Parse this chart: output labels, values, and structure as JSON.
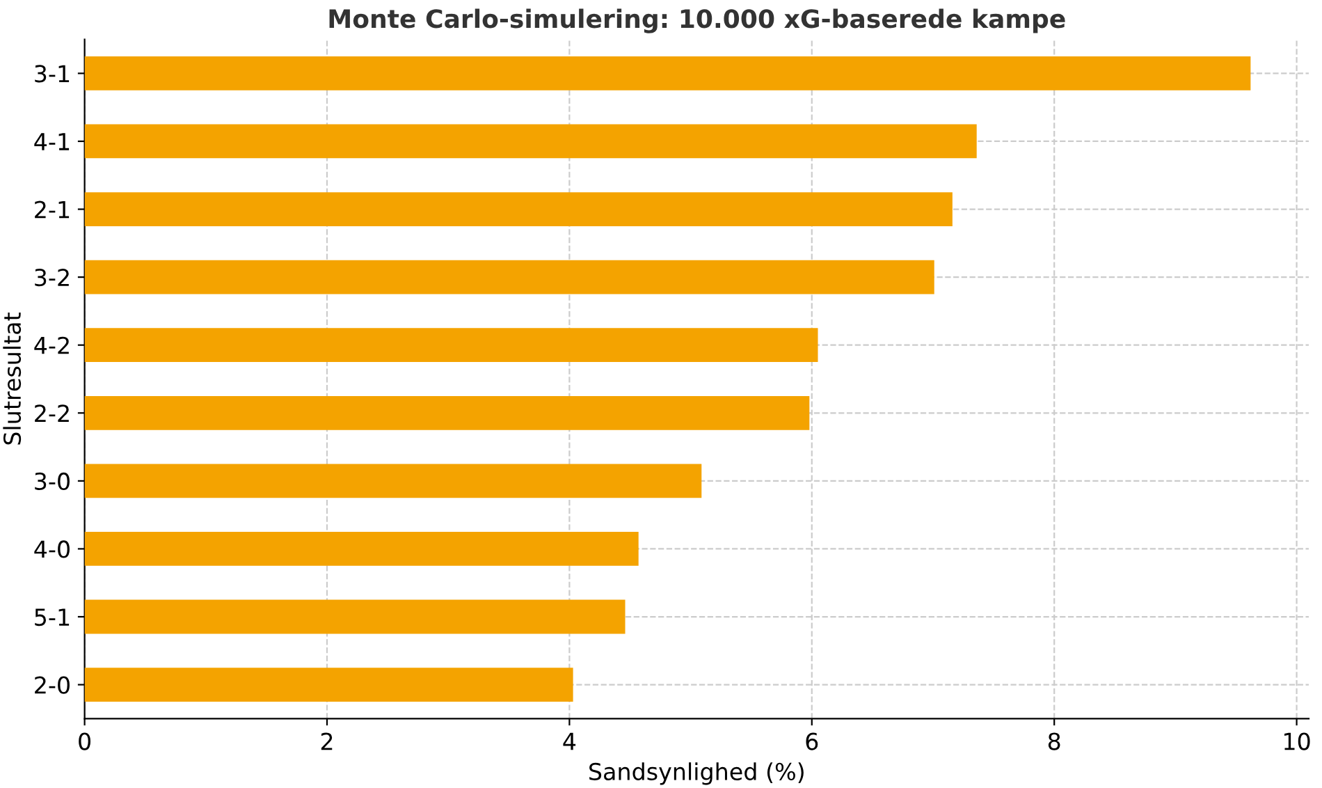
{
  "chart_data": {
    "type": "bar",
    "orientation": "horizontal",
    "title": "Monte Carlo-simulering: 10.000 xG-baserede kampe",
    "xlabel": "Sandsynlighed (%)",
    "ylabel": "Slutresultat",
    "categories": [
      "3-1",
      "4-1",
      "2-1",
      "3-2",
      "4-2",
      "2-2",
      "3-0",
      "4-0",
      "5-1",
      "2-0"
    ],
    "values": [
      9.62,
      7.36,
      7.16,
      7.01,
      6.05,
      5.98,
      5.09,
      4.57,
      4.46,
      4.03
    ],
    "color": "#f4a300",
    "xlim": [
      0,
      10.1
    ],
    "xticks": [
      0,
      2,
      4,
      6,
      8,
      10
    ],
    "grid": true,
    "line_style": "dashed"
  }
}
